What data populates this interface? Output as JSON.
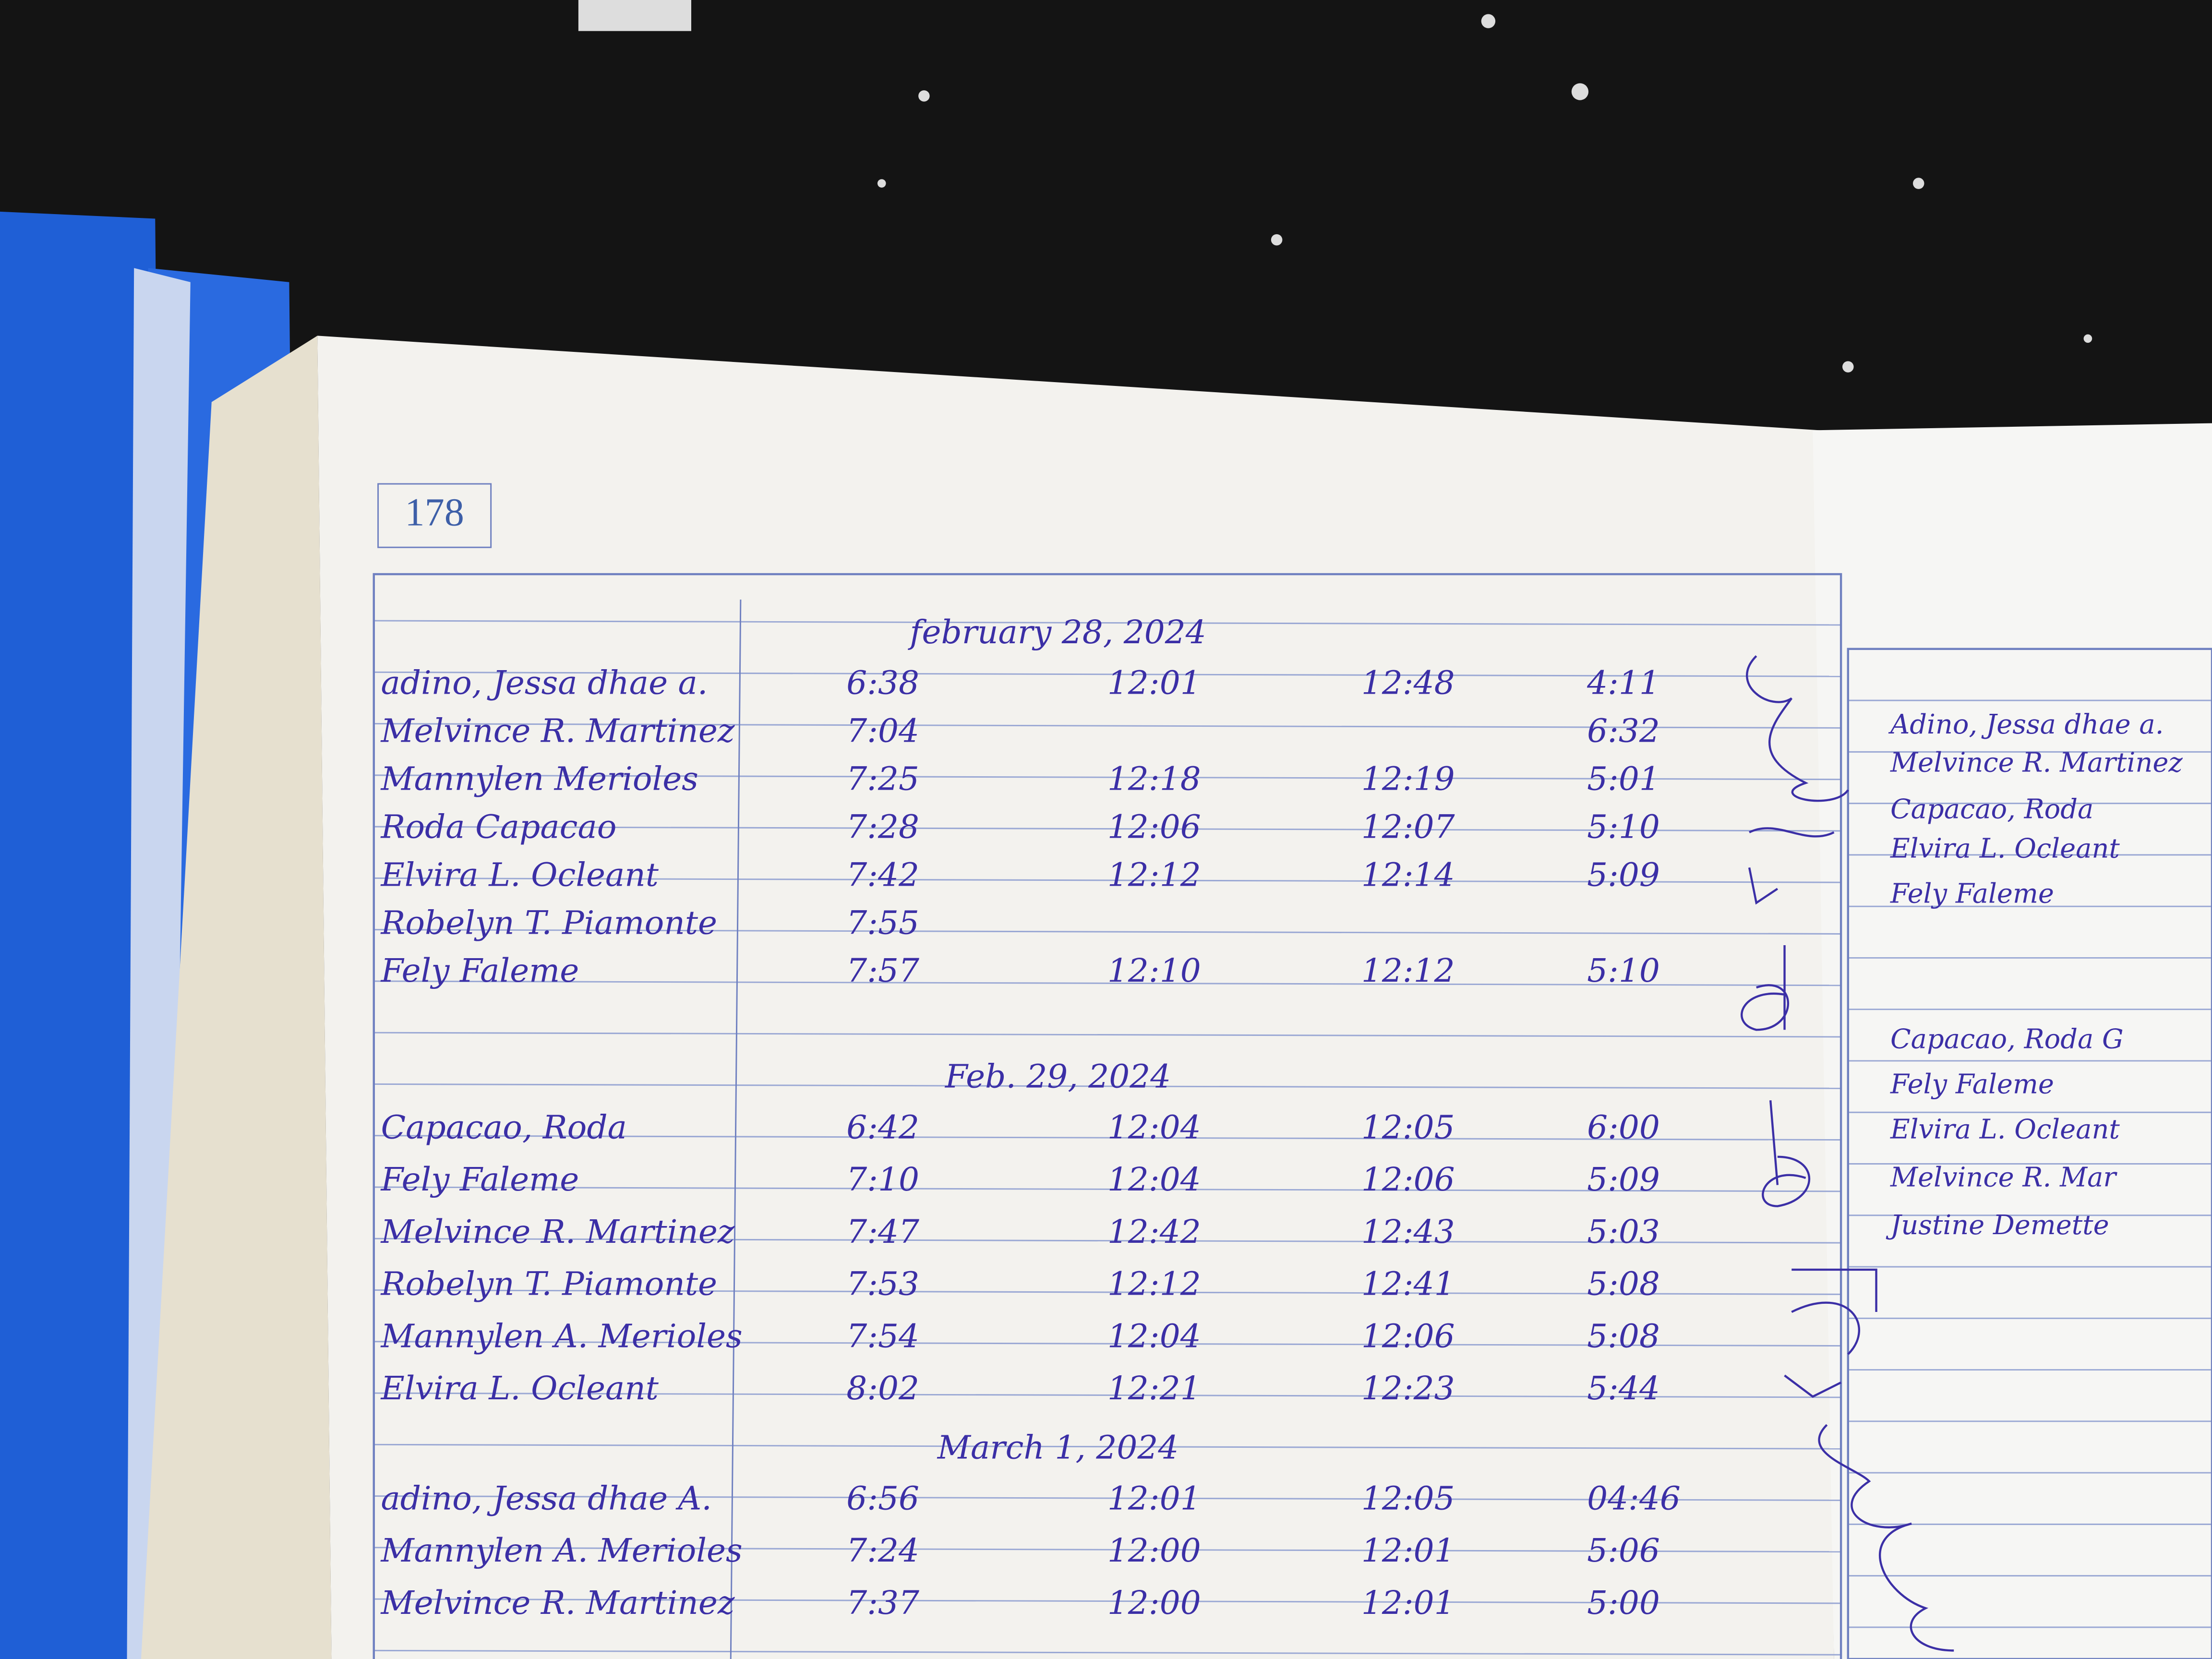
{
  "page_number": "178",
  "sections": [
    {
      "date": "february 28, 2024",
      "rows": [
        [
          "adino, Jessa dhae a.",
          "6:38",
          "12:01",
          "12:48",
          "4:11"
        ],
        [
          "Melvince R. Martinez",
          "7:04",
          null,
          null,
          "6:32"
        ],
        [
          "Mannylen Merioles",
          "7:25",
          "12:18",
          "12:19",
          "5:01"
        ],
        [
          "Roda Capacao",
          "7:28",
          "12:06",
          "12:07",
          "5:10"
        ],
        [
          "Elvira L. Ocleant",
          "7:42",
          "12:12",
          "12:14",
          "5:09"
        ],
        [
          "Robelyn T. Piamonte",
          "7:55",
          null,
          null,
          null
        ],
        [
          "Fely Faleme",
          "7:57",
          "12:10",
          "12:12",
          "5:10"
        ]
      ]
    },
    {
      "date": "Feb. 29, 2024",
      "rows": [
        [
          "Capacao, Roda",
          "6:42",
          "12:04",
          "12:05",
          "6:00"
        ],
        [
          "Fely Faleme",
          "7:10",
          "12:04",
          "12:06",
          "5:09"
        ],
        [
          "Melvince R. Martinez",
          "7:47",
          "12:42",
          "12:43",
          "5:03"
        ],
        [
          "Robelyn T. Piamonte",
          "7:53",
          "12:12",
          "12:41",
          "5:08"
        ],
        [
          "Mannylen A. Merioles",
          "7:54",
          "12:04",
          "12:06",
          "5:08"
        ],
        [
          "Elvira L. Ocleant",
          "8:02",
          "12:21",
          "12:23",
          "5:44"
        ]
      ]
    },
    {
      "date": "March 1, 2024",
      "rows": [
        [
          "adino, Jessa dhae A.",
          "6:56",
          "12:01",
          "12:05",
          "04:46"
        ],
        [
          "Mannylen A. Merioles",
          "7:24",
          "12:00",
          "12:01",
          "5:06"
        ],
        [
          "Melvince R. Martinez",
          "7:37",
          "12:00",
          "12:01",
          "5:00"
        ]
      ]
    }
  ],
  "next_page_names": [
    "Adino, Jessa dhae a.",
    "Melvince R. Martinez",
    "Capacao, Roda",
    "Elvira L. Ocleant",
    "Fely Faleme",
    "Capacao, Roda G",
    "Fely Faleme",
    "Elvira L. Ocleant",
    "Melvince R. Mar",
    "Justine Demette"
  ]
}
